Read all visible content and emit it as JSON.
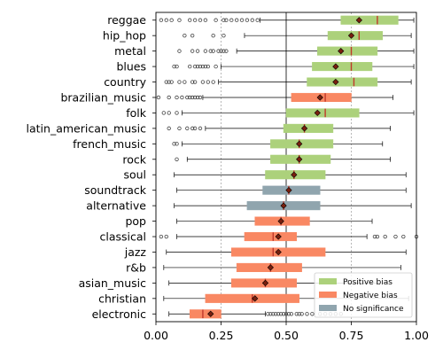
{
  "chart_data": {
    "type": "box",
    "orientation": "horizontal",
    "xlim": [
      0.0,
      1.0
    ],
    "x_ticks": [
      "0.00",
      "0.25",
      "0.50",
      "0.75",
      "1.00"
    ],
    "x_tick_values": [
      0.0,
      0.25,
      0.5,
      0.75,
      1.0
    ],
    "reference_line": 0.5,
    "dashed_gridlines": [
      0.25,
      0.75
    ],
    "legend_position": "bottom-right",
    "legend": [
      {
        "key": "positive",
        "label": "Positive bias",
        "color": "#acd17b"
      },
      {
        "key": "negative",
        "label": "Negative bias",
        "color": "#f98863"
      },
      {
        "key": "none",
        "label": "No significance",
        "color": "#90a5ae"
      }
    ],
    "colors": {
      "positive": "#acd17b",
      "negative": "#f98863",
      "none": "#90a5ae",
      "median": "#c0392b",
      "mean": "#7a1f0e"
    },
    "genres": [
      {
        "name": "reggae",
        "bias": "positive",
        "whisker_low": 0.4,
        "q1": 0.71,
        "median": 0.85,
        "q3": 0.93,
        "whisker_high": 0.99,
        "mean": 0.78,
        "outliers": [
          0.02,
          0.04,
          0.06,
          0.09,
          0.13,
          0.15,
          0.17,
          0.19,
          0.23,
          0.26,
          0.27,
          0.29,
          0.31,
          0.33,
          0.35,
          0.37,
          0.39
        ]
      },
      {
        "name": "hip_hop",
        "bias": "positive",
        "whisker_low": 0.34,
        "q1": 0.66,
        "median": 0.78,
        "q3": 0.87,
        "whisker_high": 0.98,
        "mean": 0.75,
        "outliers": [
          0.11,
          0.14,
          0.22,
          0.26
        ]
      },
      {
        "name": "metal",
        "bias": "positive",
        "whisker_low": 0.31,
        "q1": 0.62,
        "median": 0.75,
        "q3": 0.85,
        "whisker_high": 0.99,
        "mean": 0.71,
        "outliers": [
          0.09,
          0.14,
          0.16,
          0.19,
          0.21,
          0.22,
          0.24,
          0.25,
          0.26,
          0.27
        ]
      },
      {
        "name": "blues",
        "bias": "positive",
        "whisker_low": 0.25,
        "q1": 0.6,
        "median": 0.75,
        "q3": 0.83,
        "whisker_high": 0.99,
        "mean": 0.69,
        "outliers": [
          0.07,
          0.08,
          0.13,
          0.15,
          0.16,
          0.17,
          0.18,
          0.19,
          0.2,
          0.23
        ]
      },
      {
        "name": "country",
        "bias": "positive",
        "whisker_low": 0.24,
        "q1": 0.58,
        "median": 0.76,
        "q3": 0.85,
        "whisker_high": 0.98,
        "mean": 0.69,
        "outliers": [
          0.04,
          0.05,
          0.06,
          0.09,
          0.11,
          0.14,
          0.15,
          0.18,
          0.2,
          0.22
        ]
      },
      {
        "name": "brazilian_music",
        "bias": "negative",
        "whisker_low": 0.18,
        "q1": 0.52,
        "median": 0.65,
        "q3": 0.75,
        "whisker_high": 0.91,
        "mean": 0.63,
        "outliers": [
          0.01,
          0.05,
          0.08,
          0.1,
          0.12,
          0.13,
          0.14,
          0.15,
          0.16,
          0.17
        ]
      },
      {
        "name": "folk",
        "bias": "positive",
        "whisker_low": 0.1,
        "q1": 0.5,
        "median": 0.65,
        "q3": 0.78,
        "whisker_high": 0.99,
        "mean": 0.62,
        "outliers": [
          0.03,
          0.05,
          0.08
        ]
      },
      {
        "name": "latin_american_music",
        "bias": "positive",
        "whisker_low": 0.19,
        "q1": 0.49,
        "median": 0.57,
        "q3": 0.68,
        "whisker_high": 0.9,
        "mean": 0.57,
        "outliers": [
          0.05,
          0.09,
          0.12,
          0.14,
          0.15,
          0.17
        ]
      },
      {
        "name": "french_music",
        "bias": "positive",
        "whisker_low": 0.1,
        "q1": 0.44,
        "median": 0.55,
        "q3": 0.68,
        "whisker_high": 0.87,
        "mean": 0.55,
        "outliers": [
          0.07,
          0.08
        ]
      },
      {
        "name": "rock",
        "bias": "positive",
        "whisker_low": 0.12,
        "q1": 0.44,
        "median": 0.55,
        "q3": 0.67,
        "whisker_high": 0.9,
        "mean": 0.55,
        "outliers": [
          0.08
        ]
      },
      {
        "name": "soul",
        "bias": "positive",
        "whisker_low": 0.07,
        "q1": 0.42,
        "median": 0.53,
        "q3": 0.65,
        "whisker_high": 0.96,
        "mean": 0.53,
        "outliers": []
      },
      {
        "name": "soundtrack",
        "bias": "none",
        "whisker_low": 0.08,
        "q1": 0.41,
        "median": 0.51,
        "q3": 0.63,
        "whisker_high": 0.96,
        "mean": 0.51,
        "outliers": []
      },
      {
        "name": "alternative",
        "bias": "none",
        "whisker_low": 0.07,
        "q1": 0.35,
        "median": 0.49,
        "q3": 0.63,
        "whisker_high": 0.98,
        "mean": 0.49,
        "outliers": []
      },
      {
        "name": "pop",
        "bias": "negative",
        "whisker_low": 0.08,
        "q1": 0.38,
        "median": 0.48,
        "q3": 0.59,
        "whisker_high": 0.83,
        "mean": 0.48,
        "outliers": []
      },
      {
        "name": "classical",
        "bias": "negative",
        "whisker_low": 0.08,
        "q1": 0.34,
        "median": 0.45,
        "q3": 0.54,
        "whisker_high": 0.81,
        "mean": 0.47,
        "outliers": [
          0.02,
          0.04,
          0.84,
          0.85,
          0.88,
          0.92,
          0.95,
          1.0
        ]
      },
      {
        "name": "jazz",
        "bias": "negative",
        "whisker_low": 0.04,
        "q1": 0.29,
        "median": 0.45,
        "q3": 0.65,
        "whisker_high": 0.96,
        "mean": 0.47,
        "outliers": []
      },
      {
        "name": "r&b",
        "bias": "negative",
        "whisker_low": 0.03,
        "q1": 0.31,
        "median": 0.44,
        "q3": 0.56,
        "whisker_high": 0.94,
        "mean": 0.44,
        "outliers": []
      },
      {
        "name": "asian_music",
        "bias": "negative",
        "whisker_low": 0.05,
        "q1": 0.29,
        "median": 0.42,
        "q3": 0.54,
        "whisker_high": 0.85,
        "mean": 0.42,
        "outliers": []
      },
      {
        "name": "christian",
        "bias": "negative",
        "whisker_low": 0.03,
        "q1": 0.19,
        "median": 0.37,
        "q3": 0.55,
        "whisker_high": 0.97,
        "mean": 0.38,
        "outliers": []
      },
      {
        "name": "electronic",
        "bias": "negative",
        "whisker_low": 0.05,
        "q1": 0.13,
        "median": 0.18,
        "q3": 0.25,
        "whisker_high": 0.42,
        "mean": 0.21,
        "outliers": [
          0.43,
          0.44,
          0.45,
          0.46,
          0.47,
          0.48,
          0.49,
          0.5,
          0.51,
          0.52,
          0.54,
          0.55,
          0.56,
          0.58,
          0.6,
          0.63,
          0.65,
          0.67,
          0.69,
          0.71
        ]
      }
    ]
  }
}
